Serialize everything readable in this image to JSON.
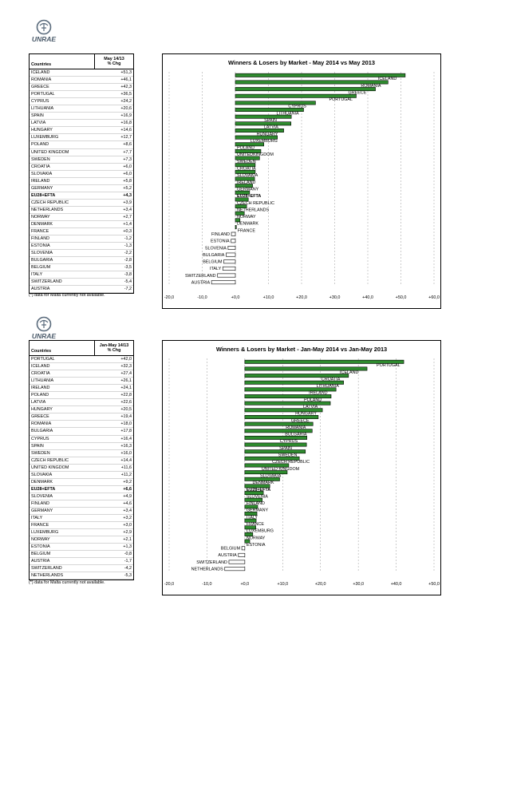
{
  "brand": "UNRAE",
  "colors": {
    "bar_positive": "#2e8b2e",
    "bar_negative": "#ffffff",
    "grid": "#999999"
  },
  "panels": [
    {
      "table": {
        "header_country": "Countries",
        "header_value_line1": "May 14/13",
        "header_value_line2": "% Chg",
        "rows": [
          {
            "country": "ICELAND",
            "value": "+51,3"
          },
          {
            "country": "ROMANIA",
            "value": "+46,1"
          },
          {
            "country": "GREECE",
            "value": "+42,3"
          },
          {
            "country": "PORTUGAL",
            "value": "+36,5"
          },
          {
            "country": "CYPRUS",
            "value": "+24,2"
          },
          {
            "country": "LITHUANIA",
            "value": "+20,6"
          },
          {
            "country": "SPAIN",
            "value": "+16,9"
          },
          {
            "country": "LATVIA",
            "value": "+16,8"
          },
          {
            "country": "HUNGARY",
            "value": "+14,6"
          },
          {
            "country": "LUXEMBURG",
            "value": "+12,7"
          },
          {
            "country": "POLAND",
            "value": "+8,6"
          },
          {
            "country": "UNITED KINGDOM",
            "value": "+7,7"
          },
          {
            "country": "SWEDEN",
            "value": "+7,3"
          },
          {
            "country": "CROATIA",
            "value": "+6,0"
          },
          {
            "country": "SLOVAKIA",
            "value": "+6,0"
          },
          {
            "country": "IRELAND",
            "value": "+5,8"
          },
          {
            "country": "GERMANY",
            "value": "+5,2"
          },
          {
            "country": "EU28+EFTA",
            "value": "+4,3",
            "bold": true
          },
          {
            "country": "CZECH REPUBLIC",
            "value": "+3,9"
          },
          {
            "country": "NETHERLANDS",
            "value": "+3,4"
          },
          {
            "country": "NORWAY",
            "value": "+2,7"
          },
          {
            "country": "DENMARK",
            "value": "+1,4"
          },
          {
            "country": "FRANCE",
            "value": "+0,3"
          },
          {
            "country": "FINLAND",
            "value": "-1,2"
          },
          {
            "country": "ESTONIA",
            "value": "-1,3"
          },
          {
            "country": "SLOVENIA",
            "value": "-2,2"
          },
          {
            "country": "BULGARIA",
            "value": "-2,8"
          },
          {
            "country": "BELGIUM",
            "value": "-3,5"
          },
          {
            "country": "ITALY",
            "value": "-3,8"
          },
          {
            "country": "SWITZERLAND",
            "value": "-5,4"
          },
          {
            "country": "AUSTRIA",
            "value": "-7,2"
          }
        ]
      },
      "note": "(*) data for Malta currently not available.",
      "chart_data": {
        "type": "bar",
        "orientation": "horizontal",
        "title": "Winners & Losers by Market - May 2014 vs May 2013",
        "xlim": [
          -20,
          60
        ],
        "xticks": [
          -20,
          -10,
          0,
          10,
          20,
          30,
          40,
          50,
          60
        ],
        "xtick_labels": [
          "-20,0",
          "-10,0",
          "+0,0",
          "+10,0",
          "+20,0",
          "+30,0",
          "+40,0",
          "+50,0",
          "+60,0"
        ],
        "grid": true,
        "categories": [
          "ICELAND",
          "ROMANIA",
          "GREECE",
          "PORTUGAL",
          "CYPRUS",
          "LITHUANIA",
          "SPAIN",
          "LATVIA",
          "HUNGARY",
          "LUXEMBURG",
          "POLAND",
          "UNITEDKINGDOM",
          "SWEDEN",
          "CROATIA",
          "SLOVAKIA",
          "IRELAND",
          "GERMANY",
          "EU28+EFTA",
          "CZECH REPUBLIC",
          "NETHERLANDS",
          "NORWAY",
          "DENMARK",
          "FRANCE",
          "FINLAND",
          "ESTONIA",
          "SLOVENIA",
          "BULGARIA",
          "BELGIUM",
          "ITALY",
          "SWITZERLAND",
          "AUSTRIA"
        ],
        "values": [
          51.3,
          46.1,
          42.3,
          36.5,
          24.2,
          20.6,
          16.9,
          16.8,
          14.6,
          12.7,
          8.6,
          7.7,
          7.3,
          6.0,
          6.0,
          5.8,
          5.2,
          4.3,
          3.9,
          3.4,
          2.7,
          1.4,
          0.3,
          -1.2,
          -1.3,
          -2.2,
          -2.8,
          -3.5,
          -3.8,
          -5.4,
          -7.2
        ],
        "bold_categories": [
          "EU28+EFTA"
        ]
      }
    },
    {
      "table": {
        "header_country": "Countries",
        "header_value_line1": "Jan-May 14/13",
        "header_value_line2": "% Chg",
        "rows": [
          {
            "country": "PORTUGAL",
            "value": "+42,0"
          },
          {
            "country": "ICELAND",
            "value": "+32,3"
          },
          {
            "country": "CROATIA",
            "value": "+27,4"
          },
          {
            "country": "LITHUANIA",
            "value": "+26,1"
          },
          {
            "country": "IRELAND",
            "value": "+24,1"
          },
          {
            "country": "POLAND",
            "value": "+22,8"
          },
          {
            "country": "LATVIA",
            "value": "+22,6"
          },
          {
            "country": "HUNGARY",
            "value": "+20,5"
          },
          {
            "country": "GREECE",
            "value": "+19,4"
          },
          {
            "country": "ROMANIA",
            "value": "+18,0"
          },
          {
            "country": "BULGARIA",
            "value": "+17,8"
          },
          {
            "country": "CYPRUS",
            "value": "+16,4"
          },
          {
            "country": "SPAIN",
            "value": "+16,3"
          },
          {
            "country": "SWEDEN",
            "value": "+16,0"
          },
          {
            "country": "CZECH REPUBLIC",
            "value": "+14,4"
          },
          {
            "country": "UNITED KINGDOM",
            "value": "+11,6"
          },
          {
            "country": "SLOVAKIA",
            "value": "+11,2"
          },
          {
            "country": "DENMARK",
            "value": "+9,2"
          },
          {
            "country": "EU28+EFTA",
            "value": "+6,6",
            "bold": true
          },
          {
            "country": "SLOVENIA",
            "value": "+4,9"
          },
          {
            "country": "FINLAND",
            "value": "+4,6"
          },
          {
            "country": "GERMANY",
            "value": "+3,4"
          },
          {
            "country": "ITALY",
            "value": "+3,2"
          },
          {
            "country": "FRANCE",
            "value": "+3,0"
          },
          {
            "country": "LUXEMBURG",
            "value": "+2,9"
          },
          {
            "country": "NORWAY",
            "value": "+2,1"
          },
          {
            "country": "ESTONIA",
            "value": "+1,3"
          },
          {
            "country": "BELGIUM",
            "value": "-0,8"
          },
          {
            "country": "AUSTRIA",
            "value": "-1,7"
          },
          {
            "country": "SWITZERLAND",
            "value": "-4,2"
          },
          {
            "country": "NETHERLANDS",
            "value": "-5,3"
          }
        ]
      },
      "note": "(*) data for Malta currently not available.",
      "chart_data": {
        "type": "bar",
        "orientation": "horizontal",
        "title": "Winners & Losers by Market - Jan-May 2014 vs Jan-May 2013",
        "xlim": [
          -20,
          50
        ],
        "xticks": [
          -20,
          -10,
          0,
          10,
          20,
          30,
          40,
          50
        ],
        "xtick_labels": [
          "-20,0",
          "-10,0",
          "+0,0",
          "+10,0",
          "+20,0",
          "+30,0",
          "+40,0",
          "+50,0"
        ],
        "grid": true,
        "categories": [
          "PORTUGAL",
          "ICELAND",
          "CROATIA",
          "LITHUANIA",
          "IRELAND",
          "POLAND",
          "LATVIA",
          "HUNGARY",
          "GREECE",
          "ROMANIA",
          "BULGARIA",
          "CYPRUS",
          "SPAIN",
          "SWEDEN",
          "CZECH REPUBLIC",
          "UNITED KINGDOM",
          "SLOVAKIA",
          "DENMARK",
          "EU28+EFTA",
          "SLOVENIA",
          "FINLAND",
          "GERMANY",
          "ITALY",
          "FRANCE",
          "LUXEMBURG",
          "NORWAY",
          "ESTONIA",
          "BELGIUM",
          "AUSTRIA",
          "SWITZERLAND",
          "NETHERLANDS"
        ],
        "values": [
          42.0,
          32.3,
          27.4,
          26.1,
          24.1,
          22.8,
          22.6,
          20.5,
          19.4,
          18.0,
          17.8,
          16.4,
          16.3,
          16.0,
          14.4,
          11.6,
          11.2,
          9.2,
          6.6,
          4.9,
          4.6,
          3.4,
          3.2,
          3.0,
          2.9,
          2.1,
          1.3,
          -0.8,
          -1.7,
          -4.2,
          -5.3
        ],
        "bold_categories": [
          "EU28+EFTA"
        ]
      }
    }
  ]
}
